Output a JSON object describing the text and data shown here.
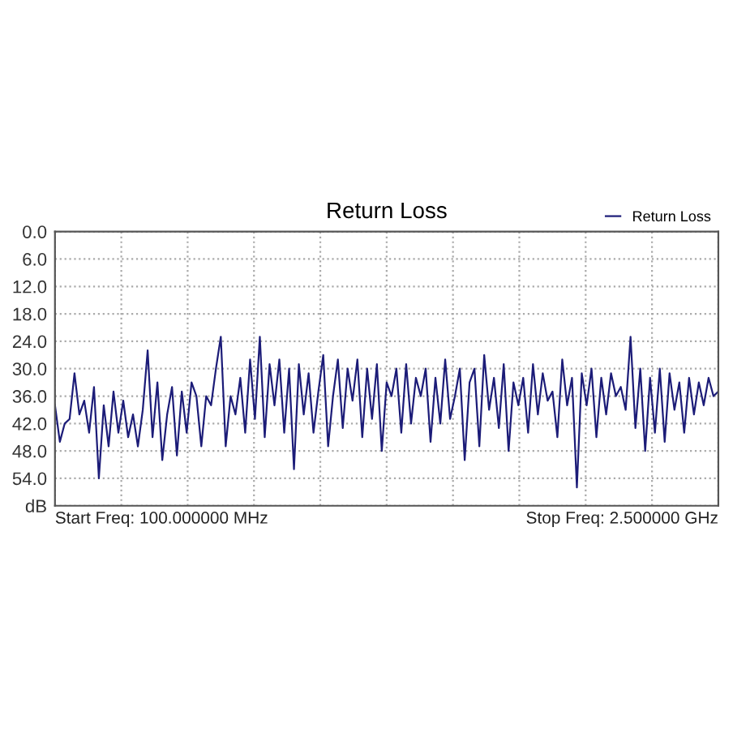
{
  "chart_data": {
    "type": "line",
    "title": "Return Loss",
    "categories": [
      null,
      null,
      null,
      null,
      null,
      null,
      null,
      null,
      null,
      null,
      null,
      null,
      null,
      null,
      null,
      null,
      null,
      null,
      null,
      null,
      null,
      null,
      null,
      null,
      null,
      null,
      null,
      null,
      null,
      null,
      null,
      null,
      null,
      null,
      null,
      null,
      null,
      null,
      null,
      null,
      null,
      null,
      null,
      null,
      null,
      null,
      null,
      null,
      null,
      null,
      null,
      null,
      null,
      null,
      null,
      null,
      null,
      null,
      null,
      null,
      null,
      null,
      null,
      null,
      null,
      null,
      null,
      null,
      null,
      null,
      null,
      null,
      null,
      null,
      null,
      null,
      null,
      null,
      null,
      null,
      null,
      null,
      null,
      null,
      null,
      null,
      null,
      null,
      null,
      null,
      null,
      null,
      null,
      null,
      null,
      null,
      null,
      null,
      null,
      null,
      null,
      null,
      null,
      null,
      null,
      null,
      null,
      null,
      null,
      null,
      null,
      null,
      null,
      null,
      null,
      null,
      null,
      null,
      null,
      null,
      null,
      null,
      null,
      null,
      null,
      null,
      null,
      null,
      null,
      null,
      null,
      null,
      null,
      null,
      null,
      null,
      null
    ],
    "series": [
      {
        "name": "Return Loss",
        "color": "#1c1c78",
        "values": [
          38,
          46,
          42,
          41,
          31,
          40,
          37,
          44,
          34,
          54,
          38,
          47,
          35,
          44,
          37,
          45,
          40,
          47,
          39,
          26,
          45,
          33,
          50,
          40,
          34,
          49,
          35,
          44,
          33,
          36,
          47,
          36,
          38,
          30,
          23,
          47,
          36,
          40,
          32,
          44,
          28,
          41,
          23,
          45,
          29,
          38,
          28,
          44,
          30,
          52,
          29,
          40,
          31,
          44,
          35,
          27,
          47,
          36,
          28,
          43,
          30,
          37,
          28,
          45,
          30,
          41,
          29,
          48,
          33,
          36,
          30,
          44,
          29,
          42,
          32,
          36,
          30,
          46,
          32,
          42,
          28,
          41,
          36,
          30,
          50,
          33,
          30,
          47,
          27,
          39,
          32,
          43,
          29,
          48,
          33,
          38,
          32,
          44,
          29,
          40,
          31,
          37,
          35,
          45,
          28,
          38,
          32,
          56,
          31,
          38,
          30,
          45,
          32,
          40,
          31,
          36,
          34,
          39,
          23,
          43,
          30,
          48,
          32,
          44,
          30,
          46,
          31,
          39,
          33,
          44,
          32,
          40,
          33,
          38,
          32,
          36,
          35
        ]
      }
    ],
    "ylim": [
      60,
      0
    ],
    "yticks": [
      {
        "value": 0,
        "label": "0.0"
      },
      {
        "value": 6,
        "label": "6.0"
      },
      {
        "value": 12,
        "label": "12.0"
      },
      {
        "value": 18,
        "label": "18.0"
      },
      {
        "value": 24,
        "label": "24.0"
      },
      {
        "value": 30,
        "label": "30.0"
      },
      {
        "value": 36,
        "label": "36.0"
      },
      {
        "value": 42,
        "label": "42.0"
      },
      {
        "value": 48,
        "label": "48.0"
      },
      {
        "value": 54,
        "label": "54.0"
      },
      {
        "value": 60,
        "label": "dB"
      }
    ],
    "annotations": [
      "Start Freq: 100.000000 MHz",
      "Stop Freq: 2.500000 GHz"
    ],
    "grid": true,
    "legend": "top right",
    "line_style": "solid",
    "marker": "none",
    "tick_labels": "y"
  }
}
